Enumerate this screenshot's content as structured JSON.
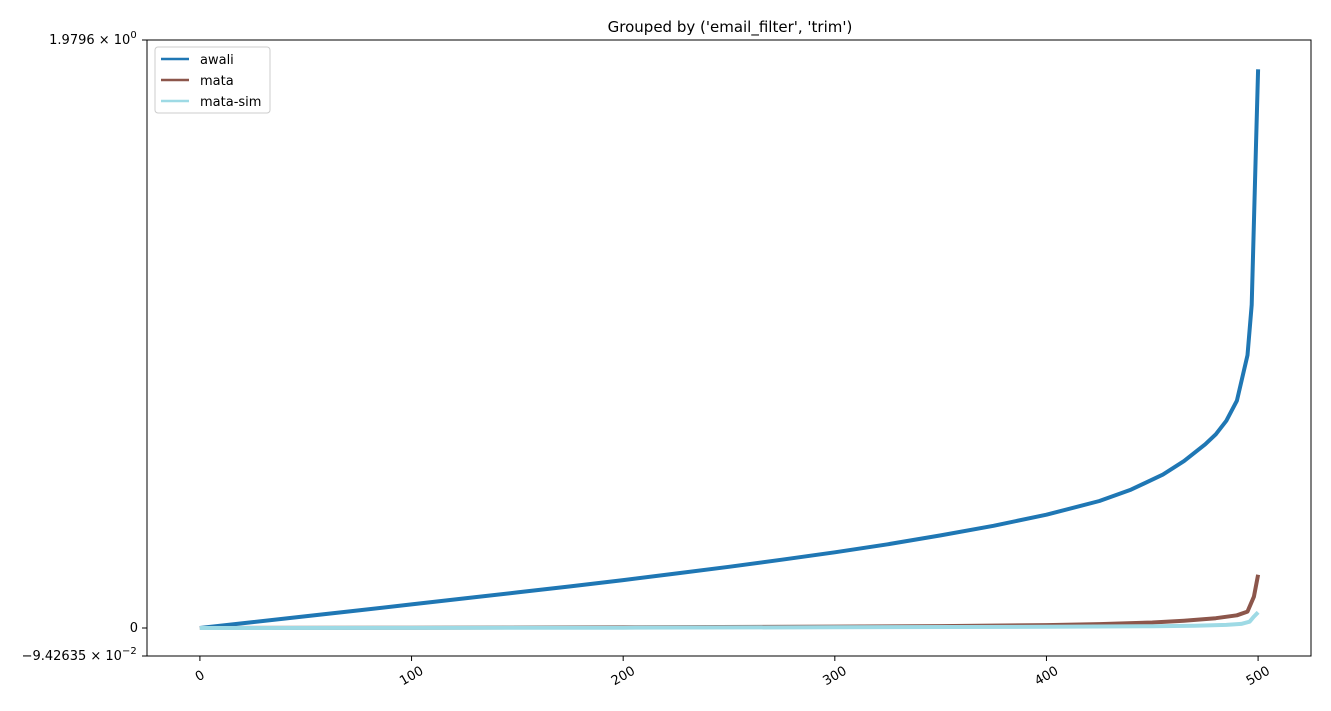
{
  "chart_data": {
    "type": "line",
    "title": "Grouped by ('email_filter', 'trim')",
    "xlabel": "",
    "ylabel": "",
    "xlim": [
      -25,
      525
    ],
    "ylim": [
      -0.0942635,
      1.9796
    ],
    "grid": false,
    "legend_position": "top-left",
    "x_ticks": [
      0,
      100,
      200,
      300,
      400,
      500
    ],
    "x_tick_labels": [
      "0",
      "100",
      "200",
      "300",
      "400",
      "500"
    ],
    "y_ticks": [
      {
        "value": 1.9796,
        "mantissa": "1.9796",
        "exponent": "0"
      },
      {
        "value": 0,
        "mantissa": "0",
        "exponent": ""
      },
      {
        "value": -0.0942635,
        "mantissa": "−9.42635",
        "exponent": "−2"
      }
    ],
    "series": [
      {
        "name": "awali",
        "color": "#1f77b4",
        "points": [
          [
            0,
            0
          ],
          [
            25,
            0.0198
          ],
          [
            50,
            0.0396
          ],
          [
            75,
            0.0593
          ],
          [
            100,
            0.0793
          ],
          [
            125,
            0.0995
          ],
          [
            150,
            0.1199
          ],
          [
            175,
            0.1402
          ],
          [
            200,
            0.1614
          ],
          [
            225,
            0.1834
          ],
          [
            250,
            0.2061
          ],
          [
            275,
            0.2299
          ],
          [
            300,
            0.2548
          ],
          [
            325,
            0.2818
          ],
          [
            350,
            0.3117
          ],
          [
            375,
            0.3441
          ],
          [
            400,
            0.3814
          ],
          [
            425,
            0.4275
          ],
          [
            440,
            0.4659
          ],
          [
            455,
            0.5165
          ],
          [
            465,
            0.5618
          ],
          [
            475,
            0.6183
          ],
          [
            480,
            0.6522
          ],
          [
            485,
            0.6975
          ],
          [
            490,
            0.7654
          ],
          [
            495,
            0.9183
          ],
          [
            497,
            1.0881
          ],
          [
            499,
            1.6259
          ],
          [
            500,
            1.8811
          ]
        ]
      },
      {
        "name": "mata",
        "color": "#8c564b",
        "points": [
          [
            0,
            0
          ],
          [
            100,
            0.0009
          ],
          [
            200,
            0.0025
          ],
          [
            300,
            0.0048
          ],
          [
            350,
            0.0065
          ],
          [
            400,
            0.0099
          ],
          [
            425,
            0.0133
          ],
          [
            450,
            0.0184
          ],
          [
            465,
            0.0246
          ],
          [
            480,
            0.0331
          ],
          [
            490,
            0.0428
          ],
          [
            495,
            0.0552
          ],
          [
            498,
            0.1054
          ],
          [
            500,
            0.1794
          ]
        ]
      },
      {
        "name": "mata-sim",
        "color": "#9edae5",
        "points": [
          [
            0,
            0
          ],
          [
            100,
            0.0002
          ],
          [
            200,
            0.0009
          ],
          [
            300,
            0.0024
          ],
          [
            400,
            0.0042
          ],
          [
            450,
            0.0059
          ],
          [
            470,
            0.0076
          ],
          [
            485,
            0.0105
          ],
          [
            492,
            0.0139
          ],
          [
            496,
            0.0213
          ],
          [
            498,
            0.0383
          ],
          [
            500,
            0.0529
          ]
        ]
      }
    ]
  }
}
